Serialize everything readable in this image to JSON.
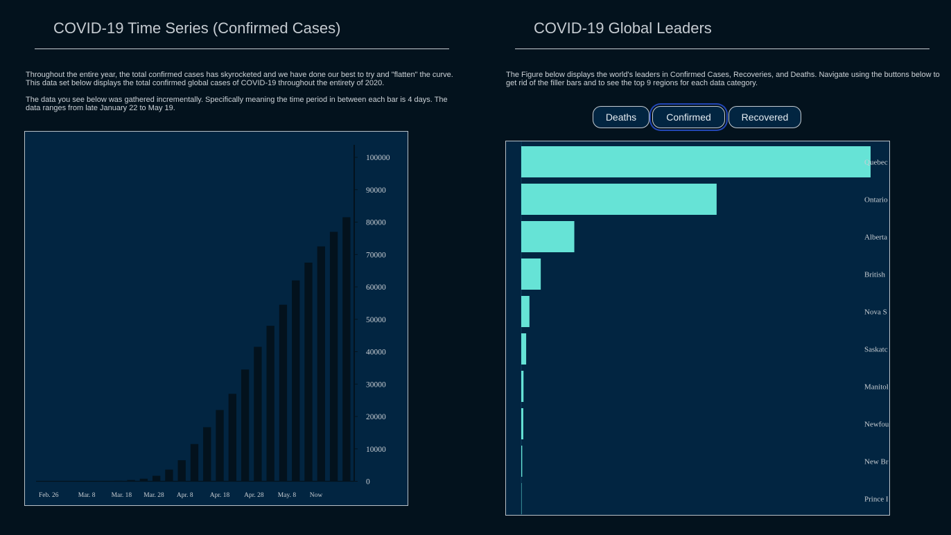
{
  "left": {
    "title": "COVID-19 Time Series (Confirmed Cases)",
    "paragraph1": "Throughout the entire year, the total confirmed cases has skyrocketed and we have done our best to try and \"flatten\" the curve. This data set below displays the total confirmed global cases of COVID-19 throughout the entirety of 2020.",
    "paragraph2": "The data you see below was gathered incrementally. Specifically meaning the time period in between each bar is 4 days. The data ranges from late January 22 to May 19."
  },
  "right": {
    "title": "COVID-19 Global Leaders",
    "paragraph": "The Figure below displays the world's leaders in Confirmed Cases, Recoveries, and Deaths. Navigate using the buttons below to get rid of the filler bars and to see the top 9 regions for each data category.",
    "buttons": [
      {
        "label": "Deaths",
        "active": false
      },
      {
        "label": "Confirmed",
        "active": true
      },
      {
        "label": "Recovered",
        "active": false
      }
    ]
  },
  "colors": {
    "background": "#03121d",
    "panel": "#022541",
    "time_series_bar": "#03121d",
    "leader_bar": "#66e3d6",
    "axis_text": "#c9ced3"
  },
  "chart_data": [
    {
      "type": "bar",
      "orientation": "vertical",
      "title": "",
      "xlabel": "",
      "ylabel": "",
      "y_axis_position": "right",
      "ylim": [
        0,
        103000
      ],
      "yticks": [
        0,
        10000,
        20000,
        30000,
        40000,
        50000,
        60000,
        70000,
        80000,
        90000,
        100000
      ],
      "xtick_labels": [
        "Feb. 26",
        "Mar. 8",
        "Mar. 18",
        "Mar. 28",
        "Apr. 8",
        "Apr. 18",
        "Apr. 28",
        "May. 8",
        "Now"
      ],
      "xtick_positions": [
        1,
        4,
        6.75,
        9.3,
        11.75,
        14.5,
        17.2,
        19.8,
        22.1
      ],
      "values": [
        0,
        0,
        0,
        10,
        20,
        50,
        150,
        400,
        800,
        1700,
        3600,
        6500,
        11500,
        16700,
        22000,
        27000,
        34500,
        41500,
        48000,
        54500,
        62000,
        67500,
        72500,
        77000,
        81500
      ],
      "grid": false,
      "legend": "none"
    },
    {
      "type": "bar",
      "orientation": "horizontal",
      "title": "",
      "categories": [
        "Quebec",
        "Ontario",
        "Alberta",
        "British Columbia",
        "Nova Scotia",
        "Saskatchewan",
        "Manitoba",
        "Newfoundland and Labrador",
        "New Brunswick",
        "Prince Edward Island"
      ],
      "visible_labels": [
        "Quebec",
        "Ontario",
        "Alberta",
        "British",
        "Nova S",
        "Saskatc",
        "Manitol",
        "Newfou",
        "New Br",
        "Prince I"
      ],
      "values": [
        44775,
        25040,
        6800,
        2500,
        1050,
        630,
        290,
        260,
        120,
        27
      ],
      "xlim": [
        0,
        44775
      ],
      "grid": false,
      "legend": "none"
    }
  ]
}
